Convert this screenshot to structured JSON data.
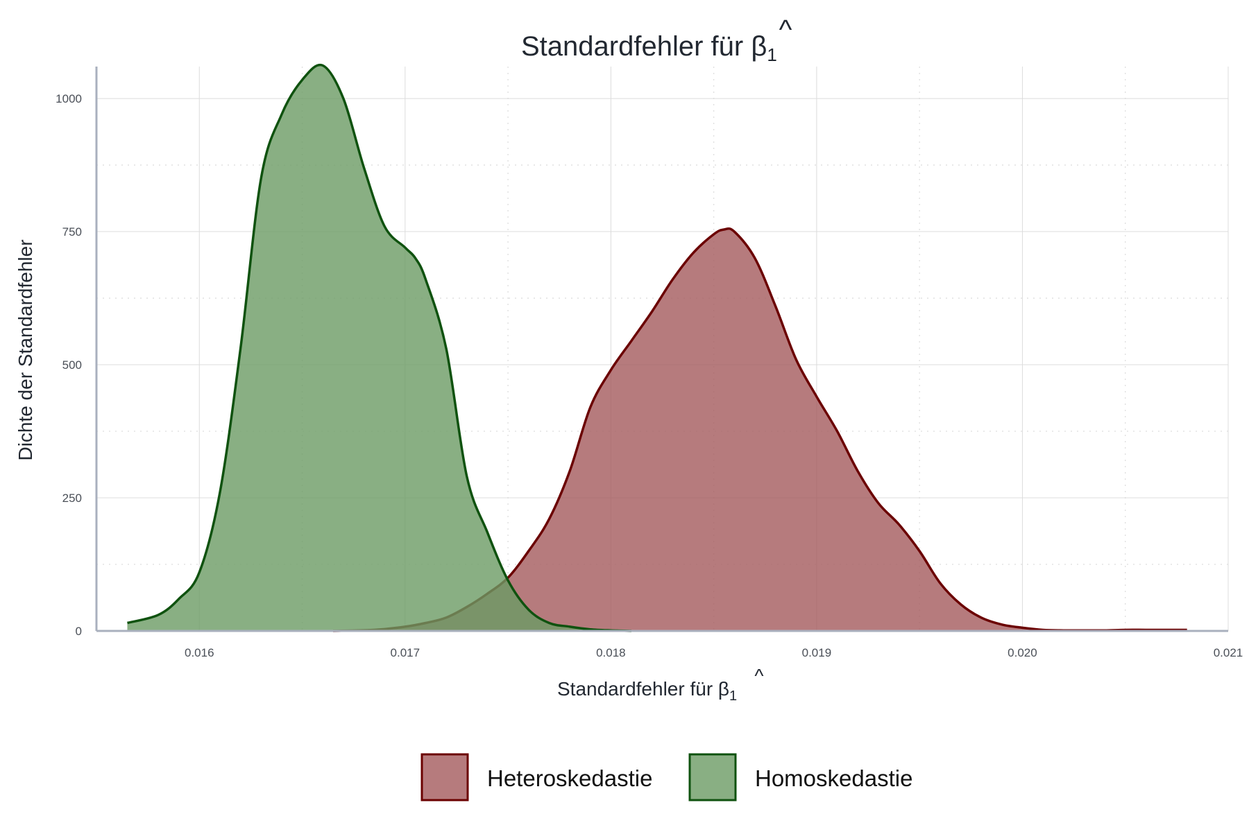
{
  "chart_data": {
    "type": "area",
    "title": {
      "base": "Standardfehler für ",
      "symbol": "β",
      "hat": "^",
      "sub": "1"
    },
    "xlabel": {
      "base": "Standardfehler für ",
      "symbol": "β",
      "hat": "^",
      "sub": "1"
    },
    "ylabel": "Dichte der Standardfehler",
    "xlim": [
      0.0155,
      0.021
    ],
    "ylim": [
      0,
      1060
    ],
    "x_ticks": [
      {
        "value": 0.016,
        "label": "0.016"
      },
      {
        "value": 0.017,
        "label": "0.017"
      },
      {
        "value": 0.018,
        "label": "0.018"
      },
      {
        "value": 0.019,
        "label": "0.019"
      },
      {
        "value": 0.02,
        "label": "0.020"
      },
      {
        "value": 0.021,
        "label": "0.021"
      }
    ],
    "y_ticks": [
      {
        "value": 0,
        "label": "0"
      },
      {
        "value": 250,
        "label": "250"
      },
      {
        "value": 500,
        "label": "500"
      },
      {
        "value": 750,
        "label": "750"
      },
      {
        "value": 1000,
        "label": "1000"
      }
    ],
    "grid": true,
    "legend_position": "bottom",
    "series": [
      {
        "name": "Heteroskedastie",
        "fill": "#a45a5d",
        "stroke": "#6b0000",
        "x": [
          0.01665,
          0.01685,
          0.017,
          0.0171,
          0.0172,
          0.0173,
          0.0174,
          0.0175,
          0.0176,
          0.0177,
          0.0178,
          0.0179,
          0.018,
          0.0181,
          0.0182,
          0.0183,
          0.0184,
          0.0185,
          0.01855,
          0.0186,
          0.0187,
          0.0188,
          0.0189,
          0.019,
          0.0191,
          0.0192,
          0.0193,
          0.0194,
          0.0195,
          0.0196,
          0.0197,
          0.0198,
          0.0199,
          0.02,
          0.0201,
          0.0202,
          0.0203,
          0.0204,
          0.0205,
          0.0206,
          0.0207,
          0.0208
        ],
        "y": [
          0,
          2,
          8,
          15,
          25,
          45,
          70,
          100,
          150,
          210,
          300,
          420,
          490,
          545,
          600,
          660,
          710,
          745,
          754,
          750,
          700,
          610,
          510,
          440,
          375,
          300,
          240,
          200,
          150,
          90,
          50,
          25,
          12,
          6,
          2,
          1,
          1,
          1,
          2,
          2,
          2,
          2
        ]
      },
      {
        "name": "Homoskedastie",
        "fill": "#6c9b64",
        "stroke": "#0f520f",
        "x": [
          0.01565,
          0.0158,
          0.0159,
          0.016,
          0.0161,
          0.0162,
          0.0163,
          0.0164,
          0.0165,
          0.0166,
          0.0167,
          0.0168,
          0.0169,
          0.017,
          0.01705,
          0.0171,
          0.0172,
          0.0173,
          0.0174,
          0.0175,
          0.0176,
          0.0177,
          0.0178,
          0.0179,
          0.018,
          0.0181
        ],
        "y": [
          15,
          30,
          60,
          110,
          260,
          530,
          850,
          970,
          1035,
          1062,
          1000,
          870,
          760,
          720,
          700,
          660,
          530,
          290,
          185,
          95,
          40,
          15,
          8,
          3,
          1,
          0
        ]
      }
    ]
  }
}
